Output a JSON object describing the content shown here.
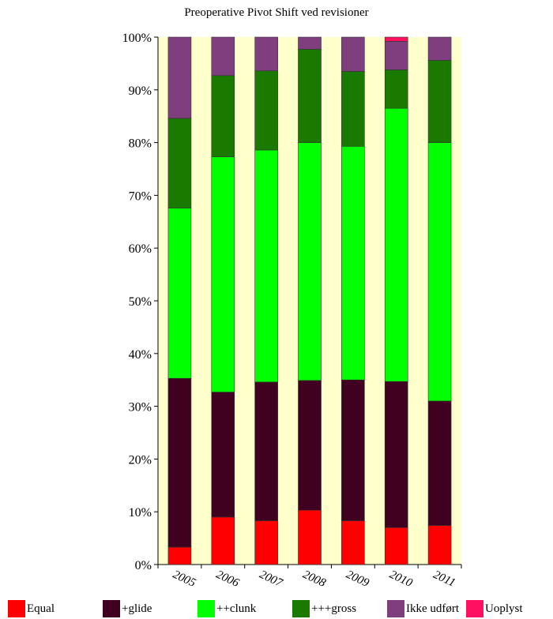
{
  "chart_data": {
    "type": "bar",
    "stacked": true,
    "percent": true,
    "title": "Preoperative Pivot Shift ved revisioner",
    "categories": [
      "2005",
      "2006",
      "2007",
      "2008",
      "2009",
      "2010",
      "2011"
    ],
    "y_ticks": [
      "0%",
      "10%",
      "20%",
      "30%",
      "40%",
      "50%",
      "60%",
      "70%",
      "80%",
      "90%",
      "100%"
    ],
    "ylim": [
      0,
      100
    ],
    "grid": false,
    "legend_position": "bottom",
    "plot_background": "#ffffcc",
    "series": [
      {
        "name": "Equal",
        "color": "#ff0000",
        "values": [
          3.3,
          9.0,
          8.3,
          10.3,
          8.3,
          7.0,
          7.4
        ]
      },
      {
        "name": "+glide",
        "color": "#400020",
        "values": [
          32.0,
          23.7,
          26.3,
          24.6,
          26.7,
          27.7,
          23.6
        ]
      },
      {
        "name": "++clunk",
        "color": "#00ff00",
        "values": [
          32.3,
          44.6,
          44.0,
          45.1,
          44.3,
          51.8,
          49.0
        ]
      },
      {
        "name": "+++gross",
        "color": "#1a7a00",
        "values": [
          17.0,
          15.4,
          15.0,
          17.7,
          14.2,
          7.3,
          15.6
        ]
      },
      {
        "name": "Ikke udført",
        "color": "#7f3f7f",
        "values": [
          15.4,
          7.3,
          6.4,
          2.3,
          6.5,
          5.4,
          4.4
        ]
      },
      {
        "name": "Uoplyst",
        "color": "#ff1060",
        "values": [
          0,
          0,
          0,
          0,
          0,
          0.8,
          0
        ]
      }
    ]
  }
}
